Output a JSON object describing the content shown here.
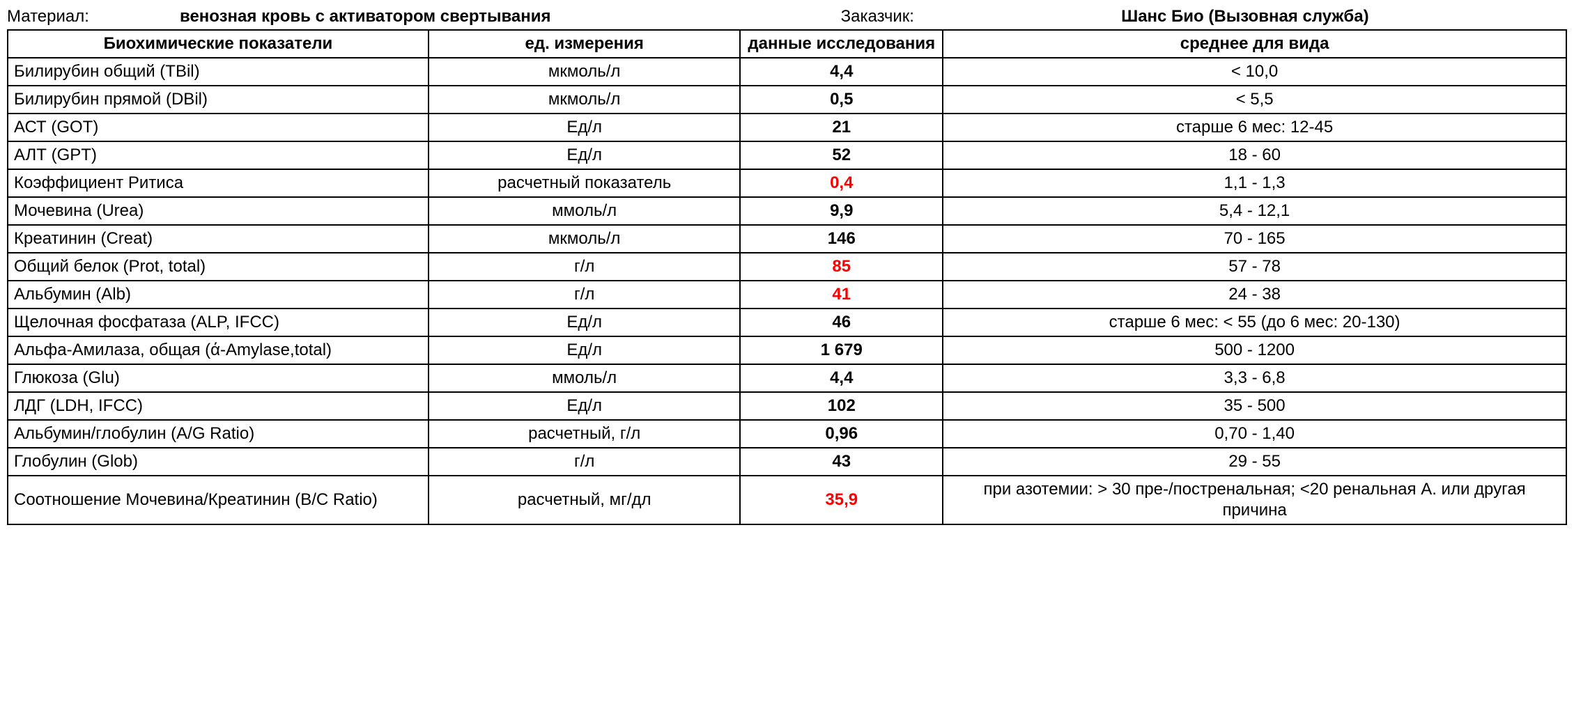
{
  "header": {
    "material_label": "Материал:",
    "material_value": "венозная кровь с активатором свертывания",
    "customer_label": "Заказчик:",
    "customer_value": "Шанс Био (Вызовная служба)"
  },
  "columns": {
    "name": "Биохимические показатели",
    "unit": "ед. измерения",
    "value": "данные исследования",
    "range": "среднее для вида"
  },
  "style": {
    "background_color": "#ffffff",
    "text_color": "#000000",
    "abnormal_color": "#ff0000",
    "border_color": "#000000",
    "border_width": 2,
    "font_family": "Arial",
    "font_size_pt": 18,
    "header_font_weight": "bold",
    "value_font_weight": "bold",
    "column_widths_pct": [
      27,
      20,
      13,
      40
    ],
    "cell_alignments": [
      "left",
      "center",
      "center",
      "center"
    ]
  },
  "rows": [
    {
      "name": "Билирубин общий (TBil)",
      "unit": "мкмоль/л",
      "value": "4,4",
      "range": "< 10,0",
      "abnormal": false
    },
    {
      "name": "Билирубин прямой (DBil)",
      "unit": "мкмоль/л",
      "value": "0,5",
      "range": "< 5,5",
      "abnormal": false
    },
    {
      "name": "АСТ (GOT)",
      "unit": "Ед/л",
      "value": "21",
      "range": "старше 6 мес: 12-45",
      "abnormal": false
    },
    {
      "name": "АЛТ (GPT)",
      "unit": "Ед/л",
      "value": "52",
      "range": "18 - 60",
      "abnormal": false
    },
    {
      "name": "Коэффициент Ритиса",
      "unit": "расчетный показатель",
      "value": "0,4",
      "range": "1,1 - 1,3",
      "abnormal": true
    },
    {
      "name": "Мочевина (Urea)",
      "unit": "ммоль/л",
      "value": "9,9",
      "range": "5,4 - 12,1",
      "abnormal": false
    },
    {
      "name": "Креатинин (Creat)",
      "unit": "мкмоль/л",
      "value": "146",
      "range": "70 - 165",
      "abnormal": false
    },
    {
      "name": "Общий белок (Prot, total)",
      "unit": "г/л",
      "value": "85",
      "range": "57 - 78",
      "abnormal": true
    },
    {
      "name": "Альбумин (Alb)",
      "unit": "г/л",
      "value": "41",
      "range": "24 - 38",
      "abnormal": true
    },
    {
      "name": "Щелочная фосфатаза (ALP, IFCC)",
      "unit": "Ед/л",
      "value": "46",
      "range": "старше 6 мес: < 55 (до 6 мес: 20-130)",
      "abnormal": false
    },
    {
      "name": "Альфа-Амилаза, общая (ά-Amylase,total)",
      "unit": "Ед/л",
      "value": "1 679",
      "range": "500 - 1200",
      "abnormal": false
    },
    {
      "name": "Глюкоза (Glu)",
      "unit": "ммоль/л",
      "value": "4,4",
      "range": "3,3 - 6,8",
      "abnormal": false
    },
    {
      "name": "ЛДГ (LDH, IFCC)",
      "unit": "Ед/л",
      "value": "102",
      "range": "35 - 500",
      "abnormal": false
    },
    {
      "name": "Альбумин/глобулин (A/G Ratio)",
      "unit": "расчетный, г/л",
      "value": "0,96",
      "range": "0,70 - 1,40",
      "abnormal": false
    },
    {
      "name": "Глобулин (Glob)",
      "unit": "г/л",
      "value": "43",
      "range": "29 - 55",
      "abnormal": false
    },
    {
      "name": "Соотношение Мочевина/Креатинин (B/C Ratio)",
      "unit": "расчетный, мг/дл",
      "value": "35,9",
      "range": "при азотемии: > 30 пре-/постренальная; <20 ренальная А. или другая причина",
      "abnormal": true
    }
  ]
}
